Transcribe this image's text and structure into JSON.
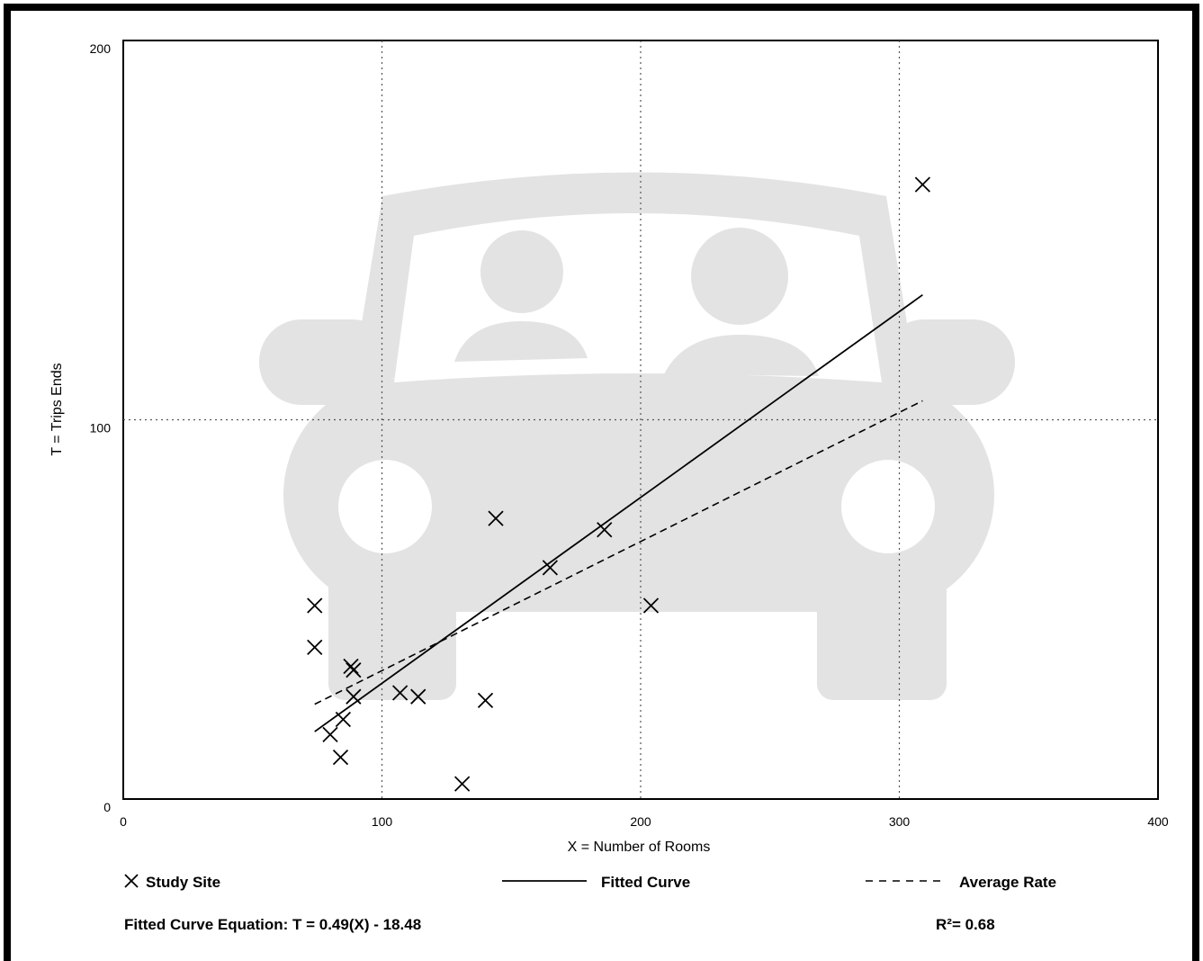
{
  "page": {
    "footer": {
      "equation": "Fitted Curve Equation: T = 0.49(X) - 18.48",
      "r_squared": "R²= 0.68"
    }
  },
  "chart_data": {
    "type": "scatter",
    "title": "",
    "xlabel": "X = Number of Rooms",
    "ylabel": "T = Trips Ends",
    "xlim": [
      0,
      400
    ],
    "ylim": [
      0,
      200
    ],
    "x_ticks": [
      0,
      100,
      200,
      300,
      400
    ],
    "y_ticks": [
      0,
      100,
      200
    ],
    "grid": "dotted at x=100,200,300 and y=100",
    "legend_placement": "bottom",
    "background_icon": "car-with-passengers-icon",
    "series": [
      {
        "name": "Study Site",
        "marker": "x",
        "points": [
          [
            74,
            51
          ],
          [
            74,
            40
          ],
          [
            80,
            17
          ],
          [
            84,
            11
          ],
          [
            85,
            21
          ],
          [
            88,
            35
          ],
          [
            89,
            34
          ],
          [
            89,
            27
          ],
          [
            107,
            28
          ],
          [
            114,
            27
          ],
          [
            131,
            4
          ],
          [
            140,
            26
          ],
          [
            144,
            74
          ],
          [
            165,
            61
          ],
          [
            186,
            71
          ],
          [
            204,
            51
          ],
          [
            309,
            162
          ]
        ]
      },
      {
        "name": "Fitted Curve",
        "style": "solid",
        "equation": "T = 0.49(X) - 18.48",
        "x_range": [
          74,
          309
        ]
      },
      {
        "name": "Average Rate",
        "style": "dashed",
        "x_range": [
          74,
          309
        ],
        "y_range": [
          25,
          105
        ]
      }
    ],
    "r_squared": 0.68
  }
}
